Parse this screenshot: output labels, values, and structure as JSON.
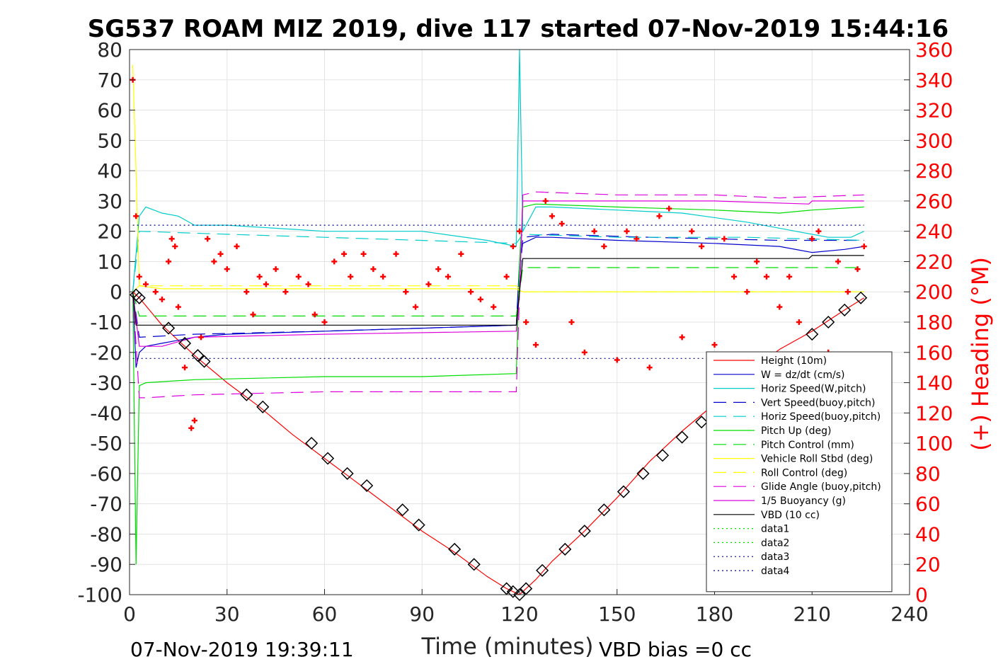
{
  "chart_data": {
    "type": "line",
    "title": "SG537 ROAM MIZ 2019, dive 117 started 07-Nov-2019 15:44:16",
    "xlabel": "Time (minutes)",
    "ylabel_right": "(+) Heading (°M)",
    "xlim": [
      0,
      240
    ],
    "ylim": [
      -100,
      80
    ],
    "ylim_right": [
      0,
      360
    ],
    "x_ticks": [
      0,
      30,
      60,
      90,
      120,
      150,
      180,
      210,
      240
    ],
    "y_ticks": [
      -100,
      -90,
      -80,
      -70,
      -60,
      -50,
      -40,
      -30,
      -20,
      -10,
      0,
      10,
      20,
      30,
      40,
      50,
      60,
      70,
      80
    ],
    "y_ticks_right": [
      0,
      20,
      40,
      60,
      80,
      100,
      120,
      140,
      160,
      180,
      200,
      220,
      240,
      260,
      280,
      300,
      320,
      340,
      360
    ],
    "grid": true,
    "legend_position": "bottom-right",
    "footer_left": "07-Nov-2019 19:39:11",
    "footer_right": "VBD bias =0 cc",
    "series": [
      {
        "name": "Height (10m)",
        "color": "#ff0000",
        "style": "solid",
        "x": [
          1,
          2,
          3,
          10,
          20,
          30,
          40,
          50,
          60,
          70,
          80,
          90,
          100,
          110,
          116,
          118,
          120,
          122,
          125,
          130,
          140,
          150,
          160,
          170,
          180,
          190,
          200,
          210,
          220,
          226
        ],
        "y": [
          0,
          -1,
          -2,
          -11,
          -21,
          -30,
          -38,
          -47,
          -55,
          -63,
          -71,
          -79,
          -86,
          -94,
          -98,
          -99,
          -100,
          -98,
          -95,
          -89,
          -79,
          -68,
          -56,
          -46,
          -37,
          -27,
          -19,
          -13,
          -6,
          -2
        ]
      },
      {
        "name": "W = dz/dt (cm/s)",
        "color": "#0000cc",
        "style": "solid",
        "x": [
          1,
          2,
          3,
          5,
          10,
          20,
          30,
          60,
          90,
          119,
          120,
          121,
          125,
          130,
          150,
          180,
          200,
          210,
          220,
          226
        ],
        "y": [
          0,
          -25,
          -20,
          -18,
          -17,
          -15,
          -14,
          -13,
          -12,
          -11,
          10,
          16,
          18,
          18,
          17,
          16,
          15,
          13,
          14,
          15
        ]
      },
      {
        "name": "Horiz Speed(W,pitch)",
        "color": "#00cccc",
        "style": "solid",
        "x": [
          1,
          3,
          5,
          10,
          15,
          20,
          30,
          60,
          90,
          110,
          119,
          120,
          121,
          125,
          130,
          150,
          170,
          190,
          205,
          215,
          222,
          226
        ],
        "y": [
          0,
          25,
          28,
          26,
          25,
          22,
          22,
          20,
          20,
          17,
          15,
          80,
          20,
          28,
          28,
          27,
          26,
          23,
          20,
          18,
          18,
          20
        ]
      },
      {
        "name": "Vert Speed(buoy,pitch)",
        "color": "#0000cc",
        "style": "dashed",
        "x": [
          1,
          3,
          20,
          60,
          119,
          121,
          130,
          160,
          200,
          226
        ],
        "y": [
          0,
          -15,
          -14,
          -13,
          -11,
          18,
          19,
          18,
          17,
          17
        ]
      },
      {
        "name": "Horiz Speed(buoy,pitch)",
        "color": "#00cccc",
        "style": "dashed",
        "x": [
          1,
          3,
          30,
          60,
          119,
          121,
          150,
          190,
          226
        ],
        "y": [
          0,
          20,
          19,
          18,
          16,
          19,
          18,
          18,
          17
        ]
      },
      {
        "name": "Pitch Up (deg)",
        "color": "#00dd00",
        "style": "solid",
        "x": [
          1,
          2,
          3,
          5,
          20,
          60,
          90,
          119,
          120,
          121,
          125,
          150,
          180,
          200,
          210,
          226
        ],
        "y": [
          0,
          -90,
          -31,
          -30,
          -29,
          -28,
          -28,
          -27,
          10,
          28,
          29,
          28,
          27,
          26,
          27,
          28
        ]
      },
      {
        "name": "Pitch Control (mm)",
        "color": "#00dd00",
        "style": "dashed",
        "x": [
          1,
          3,
          60,
          119,
          121,
          180,
          226
        ],
        "y": [
          0,
          -8,
          -8,
          -8,
          8,
          8,
          8
        ]
      },
      {
        "name": "Vehicle Roll Stbd (deg)",
        "color": "#ffff00",
        "style": "solid",
        "x": [
          1,
          2,
          3,
          10,
          30,
          60,
          90,
          119,
          121,
          150,
          180,
          210,
          226
        ],
        "y": [
          75,
          40,
          2,
          1,
          1,
          1,
          1,
          1,
          0,
          0,
          0,
          0,
          0
        ]
      },
      {
        "name": "Roll Control (deg)",
        "color": "#ffff00",
        "style": "dashed",
        "x": [
          1,
          3,
          60,
          119,
          121,
          180,
          226
        ],
        "y": [
          0,
          2,
          2,
          2,
          0,
          0,
          0
        ]
      },
      {
        "name": "Glide Angle (buoy,pitch)",
        "color": "#dd00dd",
        "style": "dashed",
        "x": [
          1,
          3,
          5,
          20,
          60,
          119,
          120,
          121,
          125,
          150,
          180,
          200,
          226
        ],
        "y": [
          0,
          -35,
          -35,
          -34,
          -33,
          -33,
          0,
          32,
          33,
          32,
          32,
          31,
          32
        ]
      },
      {
        "name": "1/5 Buoyancy (g)",
        "color": "#dd00dd",
        "style": "solid",
        "x": [
          1,
          3,
          10,
          20,
          60,
          119,
          120,
          121,
          150,
          180,
          209,
          210,
          226
        ],
        "y": [
          0,
          -18,
          -18,
          -15,
          -14,
          -13,
          0,
          30,
          30,
          30,
          29,
          30,
          30
        ]
      },
      {
        "name": "VBD (10 cc)",
        "color": "#000000",
        "style": "solid",
        "x": [
          1,
          2,
          3,
          119,
          120,
          121,
          209,
          210,
          226
        ],
        "y": [
          0,
          -11,
          -11,
          -11,
          0,
          11,
          11,
          12,
          12
        ]
      },
      {
        "name": "data1",
        "color": "#00dd00",
        "style": "dotted",
        "x": [],
        "y": []
      },
      {
        "name": "data2",
        "color": "#00dd00",
        "style": "dotted",
        "x": [],
        "y": []
      },
      {
        "name": "data3",
        "color": "#000080",
        "style": "dotted",
        "x": [
          1,
          226
        ],
        "y": [
          22,
          22
        ]
      },
      {
        "name": "data4",
        "color": "#000080",
        "style": "dotted",
        "x": [
          1,
          226
        ],
        "y": [
          -22,
          -22
        ]
      }
    ],
    "heading_markers": {
      "color": "#ff0000",
      "x": [
        1,
        2,
        3,
        5,
        8,
        10,
        12,
        13,
        14,
        15,
        17,
        19,
        20,
        22,
        24,
        26,
        28,
        30,
        33,
        36,
        38,
        40,
        42,
        45,
        48,
        52,
        55,
        57,
        60,
        63,
        66,
        68,
        72,
        75,
        78,
        82,
        85,
        88,
        92,
        95,
        98,
        102,
        105,
        108,
        112,
        116,
        118,
        120,
        122,
        125,
        128,
        130,
        133,
        136,
        140,
        143,
        146,
        150,
        153,
        156,
        160,
        163,
        166,
        170,
        173,
        176,
        180,
        183,
        186,
        190,
        193,
        196,
        200,
        203,
        206,
        210,
        212,
        215,
        218,
        221,
        224,
        226
      ],
      "y": [
        340,
        250,
        210,
        205,
        200,
        195,
        220,
        235,
        230,
        190,
        150,
        110,
        115,
        170,
        235,
        220,
        225,
        215,
        230,
        200,
        185,
        210,
        205,
        215,
        200,
        210,
        205,
        185,
        180,
        220,
        225,
        210,
        225,
        215,
        210,
        225,
        200,
        190,
        205,
        215,
        210,
        225,
        200,
        195,
        190,
        210,
        230,
        240,
        180,
        165,
        260,
        250,
        245,
        180,
        160,
        240,
        230,
        155,
        240,
        235,
        150,
        250,
        255,
        170,
        240,
        230,
        165,
        235,
        210,
        200,
        220,
        210,
        190,
        210,
        180,
        235,
        240,
        160,
        220,
        200,
        215,
        230
      ]
    },
    "depth_markers": {
      "color": "#000000",
      "x": [
        2,
        3,
        12,
        17,
        21,
        23,
        36,
        41,
        56,
        61,
        67,
        73,
        84,
        89,
        100,
        106,
        116,
        118,
        120,
        122,
        127,
        134,
        140,
        146,
        152,
        158,
        164,
        170,
        176,
        210,
        215,
        220,
        225
      ],
      "y": [
        -1,
        -2,
        -12,
        -17,
        -21,
        -23,
        -34,
        -38,
        -50,
        -55,
        -60,
        -64,
        -72,
        -77,
        -85,
        -90,
        -98,
        -99,
        -100,
        -98,
        -92,
        -85,
        -79,
        -72,
        -66,
        -60,
        -54,
        -48,
        -43,
        -14,
        -10,
        -6,
        -2
      ]
    }
  }
}
